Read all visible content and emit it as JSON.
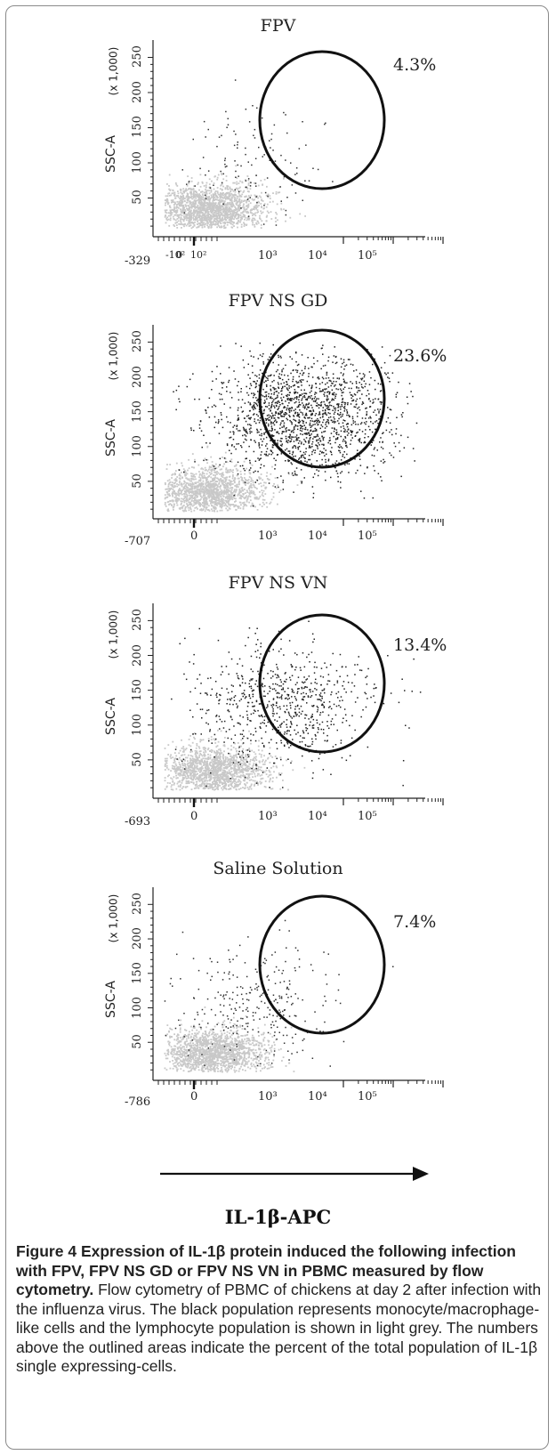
{
  "chart_data": [
    {
      "type": "scatter",
      "title": "FPV",
      "gate_percent": "4.3%",
      "ylabel": "SSC-A",
      "yunit": "(x 1,000)",
      "yticks": [
        "50",
        "100",
        "150",
        "200",
        "250"
      ],
      "xticks": [
        "-329",
        "-10²",
        "0",
        "10²",
        "10³",
        "10⁴",
        "10⁵"
      ],
      "ylim": [
        0,
        262
      ],
      "xlabel": "IL-1β-APC",
      "series": [
        {
          "name": "",
          "color": "#c8c8c8",
          "count": 1800,
          "mean": [
            0.3,
            35
          ],
          "sd": [
            0.55,
            18
          ]
        },
        {
          "name": "",
          "color": "#333333",
          "count": 130,
          "mean": [
            1.2,
            100
          ],
          "sd": [
            0.7,
            45
          ]
        }
      ]
    },
    {
      "type": "scatter",
      "title": "FPV NS GD",
      "gate_percent": "23.6%",
      "ylabel": "SSC-A",
      "yunit": "(x 1,000)",
      "yticks": [
        "50",
        "100",
        "150",
        "200",
        "250"
      ],
      "xticks": [
        "-707",
        "0",
        "10³",
        "10⁴",
        "10⁵"
      ],
      "ylim": [
        0,
        262
      ],
      "xlabel": "IL-1β-APC",
      "series": [
        {
          "name": "",
          "color": "#c8c8c8",
          "count": 1500,
          "mean": [
            0.3,
            35
          ],
          "sd": [
            0.55,
            18
          ]
        },
        {
          "name": "",
          "color": "#222222",
          "count": 1700,
          "mean": [
            2.2,
            145
          ],
          "sd": [
            0.9,
            45
          ]
        }
      ]
    },
    {
      "type": "scatter",
      "title": "FPV NS VN",
      "gate_percent": "13.4%",
      "ylabel": "SSC-A",
      "yunit": "(x 1,000)",
      "yticks": [
        "50",
        "100",
        "150",
        "200",
        "250"
      ],
      "xticks": [
        "-693",
        "0",
        "10³",
        "10⁴",
        "10⁵"
      ],
      "ylim": [
        0,
        262
      ],
      "xlabel": "IL-1β-APC",
      "series": [
        {
          "name": "",
          "color": "#c8c8c8",
          "count": 1600,
          "mean": [
            0.4,
            35
          ],
          "sd": [
            0.55,
            18
          ]
        },
        {
          "name": "",
          "color": "#222222",
          "count": 750,
          "mean": [
            1.8,
            130
          ],
          "sd": [
            0.9,
            45
          ]
        }
      ]
    },
    {
      "type": "scatter",
      "title": "Saline Solution",
      "gate_percent": "7.4%",
      "ylabel": "SSC-A",
      "yunit": "(x 1,000)",
      "yticks": [
        "50",
        "100",
        "150",
        "200",
        "250"
      ],
      "xticks": [
        "-786",
        "0",
        "10³",
        "10⁴",
        "10⁵"
      ],
      "ylim": [
        0,
        262
      ],
      "xlabel": "IL-1β-APC",
      "series": [
        {
          "name": "",
          "color": "#c8c8c8",
          "count": 1700,
          "mean": [
            0.35,
            35
          ],
          "sd": [
            0.55,
            18
          ]
        },
        {
          "name": "",
          "color": "#333333",
          "count": 300,
          "mean": [
            1.2,
            110
          ],
          "sd": [
            0.8,
            45
          ]
        }
      ]
    }
  ],
  "x_axis_title": "IL-1β-APC",
  "caption": {
    "label": "Figure 4",
    "title": "Expression of IL-1β protein induced the following infection with FPV, FPV NS GD or FPV NS VN in PBMC measured by flow cytometry.",
    "body": "Flow cytometry of PBMC of chickens at day 2 after infection with the influenza virus. The black population represents monocyte/macrophage-like cells and the lymphocyte population is shown in light grey. The numbers above the outlined areas indicate the percent of the total population of IL-1β single expressing-cells."
  }
}
